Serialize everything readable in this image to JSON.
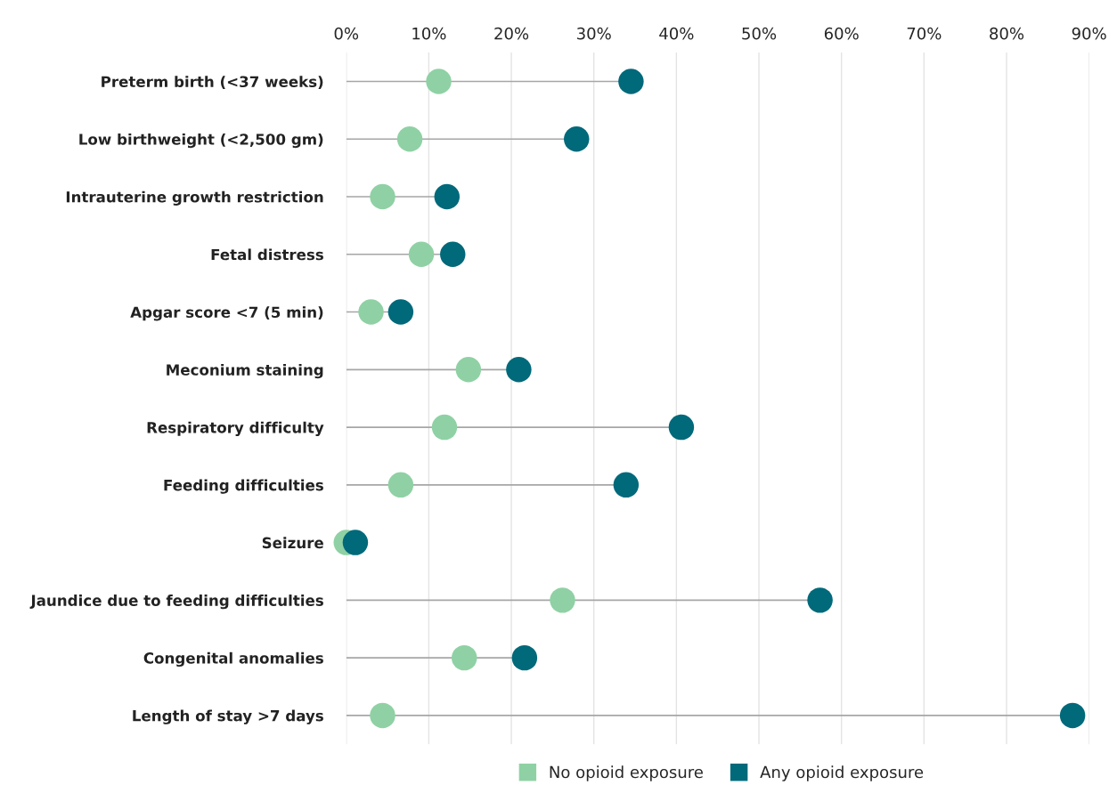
{
  "chart_data": {
    "type": "scatter",
    "orientation": "horizontal",
    "categories": [
      "Preterm birth (<37 weeks)",
      "Low birthweight (<2,500 gm)",
      "Intrauterine growth restriction",
      "Fetal distress",
      "Apgar score <7 (5 min)",
      "Meconium staining",
      "Respiratory difficulty",
      "Feeding difficulties",
      "Seizure",
      "Jaundice due to feeding difficulties",
      "Congenital anomalies",
      "Length of stay >7 days"
    ],
    "series": [
      {
        "name": "No opioid exposure",
        "color": "#8fd1a4",
        "values": [
          11.2,
          7.7,
          4.4,
          9.1,
          3.0,
          14.8,
          11.9,
          6.6,
          0,
          26.2,
          14.3,
          4.4
        ]
      },
      {
        "name": "Any opioid exposure",
        "color": "#00697a",
        "type": "lollipop",
        "values": [
          34.5,
          27.9,
          12.2,
          12.9,
          6.6,
          20.9,
          40.6,
          33.9,
          1.1,
          57.4,
          21.6,
          88.0
        ]
      }
    ],
    "xlim": [
      0,
      90
    ],
    "xticks": [
      {
        "value": 0,
        "label": "0%"
      },
      {
        "value": 10,
        "label": "10%"
      },
      {
        "value": 20,
        "label": "20%"
      },
      {
        "value": 30,
        "label": "30%"
      },
      {
        "value": 40,
        "label": "40%"
      },
      {
        "value": 50,
        "label": "50%"
      },
      {
        "value": 60,
        "label": "60%"
      },
      {
        "value": 70,
        "label": "70%"
      },
      {
        "value": 80,
        "label": "80%"
      },
      {
        "value": 90,
        "label": "90%"
      }
    ],
    "grid": "x",
    "legend": "bottom",
    "marker": "circle"
  }
}
